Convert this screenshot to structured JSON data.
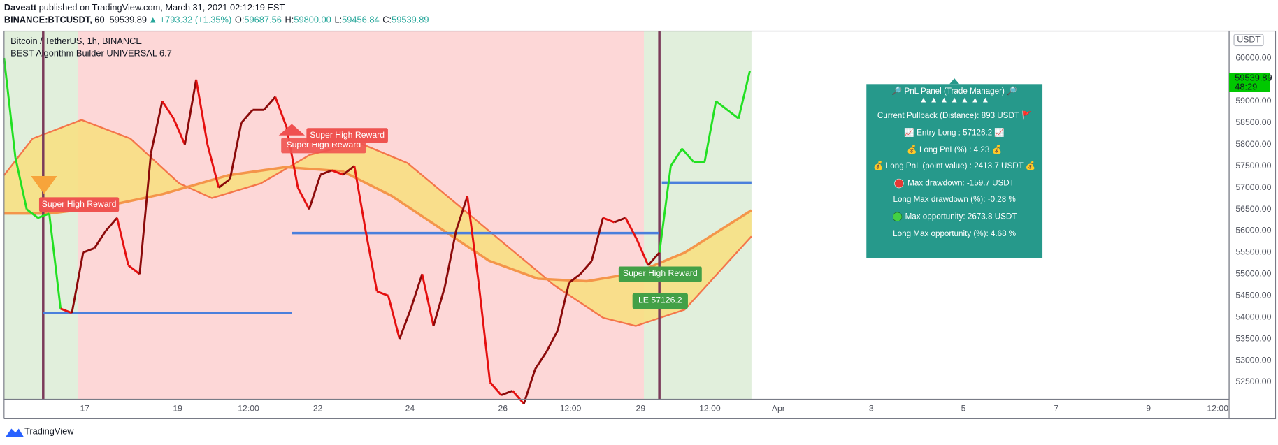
{
  "header": {
    "publisher": "Daveatt",
    "published": " published on TradingView.com, March 31, 2021 02:12:19 EST",
    "symbol": "BINANCE:BTCUSDT, 60",
    "last": "59539.89",
    "change": "▲ +793.32 (+1.35%)",
    "o_label": "O:",
    "o": "59687.56",
    "h_label": "H:",
    "h": "59800.00",
    "l_label": "L:",
    "l": "59456.84",
    "c_label": "C:",
    "c": "59539.89"
  },
  "legend": {
    "symbol": "Bitcoin / TetherUS, 1h, BINANCE",
    "indicator": "BEST Algorithm Builder UNIVERSAL 6.7"
  },
  "price_axis": {
    "currency": "USDT",
    "labels": [
      "52500.00",
      "53000.00",
      "53500.00",
      "54000.00",
      "54500.00",
      "55000.00",
      "55500.00",
      "56000.00",
      "56500.00",
      "57000.00",
      "57500.00",
      "58000.00",
      "58500.00",
      "59000.00",
      "59500.00",
      "60000.00"
    ],
    "last_price": "59539.89",
    "countdown": "48:29"
  },
  "time_axis": [
    "17",
    "19",
    "12:00",
    "22",
    "24",
    "26",
    "12:00",
    "29",
    "12:00",
    "Apr",
    "3",
    "5",
    "7",
    "9",
    "12:00"
  ],
  "price_closes": [
    60000,
    57700,
    56500,
    56300,
    56400,
    54200,
    54100,
    55500,
    55600,
    56000,
    56300,
    55200,
    55000,
    57800,
    59000,
    58600,
    58000,
    59500,
    58000,
    57000,
    57200,
    58500,
    58800,
    58800,
    59100,
    58400,
    57000,
    56500,
    57300,
    57400,
    57300,
    57500,
    56000,
    54600,
    54500,
    53500,
    54200,
    55000,
    53800,
    54700,
    56000,
    56800,
    54800,
    52500,
    52200,
    52300,
    52000,
    52800,
    53200,
    53700,
    54800,
    55000,
    55300,
    56300,
    56200,
    56300,
    55800,
    55200,
    55500,
    57500,
    57900,
    57600,
    57600,
    59000,
    58800,
    58600,
    59700
  ],
  "signals": [
    "Super High Reward",
    "Super High Reward",
    "Super High Reward",
    "Super High Reward",
    "LE 57126.2"
  ],
  "panel": {
    "title": "🔎 PnL Panel (Trade Manager) 🔎",
    "arrows": "▲ ▲ ▲ ▲ ▲ ▲ ▲",
    "rows": [
      "Current Pullback (Distance): 893 USDT 🚩",
      "📈 Entry Long : 57126.2 📈",
      "💰 Long PnL(%) : 4.23 💰",
      "💰 Long PnL (point value) : 2413.7 USDT 💰",
      "Max drawdown: -159.7 USDT",
      "Long Max drawdown (%): -0.28 %",
      "Max opportunity: 2673.8 USDT",
      "Long Max opportunity (%): 4.68 %"
    ]
  },
  "footer": "TradingView"
}
